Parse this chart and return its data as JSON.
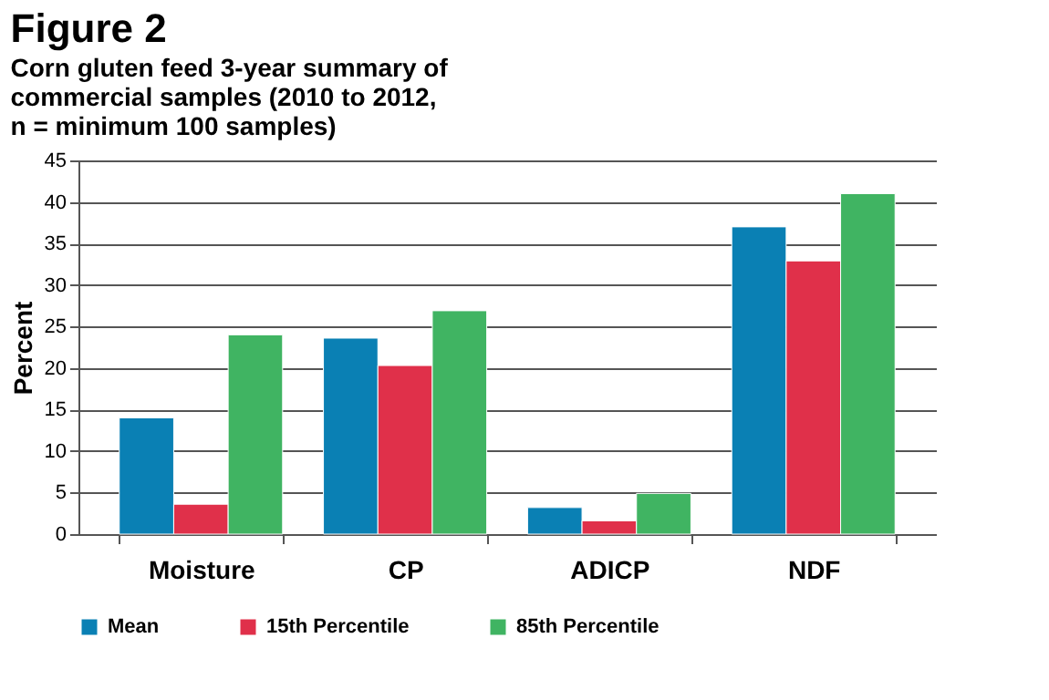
{
  "chart_data": {
    "type": "bar",
    "title": "Figure 2",
    "subtitle": [
      "Corn gluten feed 3-year summary of",
      "commercial samples (2010 to 2012,",
      "n = minimum 100 samples)"
    ],
    "ylabel": "Percent",
    "categories": [
      "Moisture",
      "CP",
      "ADICP",
      "NDF"
    ],
    "series": [
      {
        "name": "Mean",
        "color": "#0a80b4",
        "values": [
          14,
          23.6,
          3.2,
          37
        ]
      },
      {
        "name": "15th Percentile",
        "color": "#e0304a",
        "values": [
          3.6,
          20.3,
          1.6,
          32.9
        ]
      },
      {
        "name": "85th Percentile",
        "color": "#40b462",
        "values": [
          24,
          26.9,
          4.9,
          41
        ]
      }
    ],
    "ylim": [
      0,
      45
    ],
    "yticks": [
      0,
      5,
      10,
      15,
      20,
      25,
      30,
      35,
      40,
      45
    ],
    "grid": "y",
    "legend": "bottom"
  }
}
